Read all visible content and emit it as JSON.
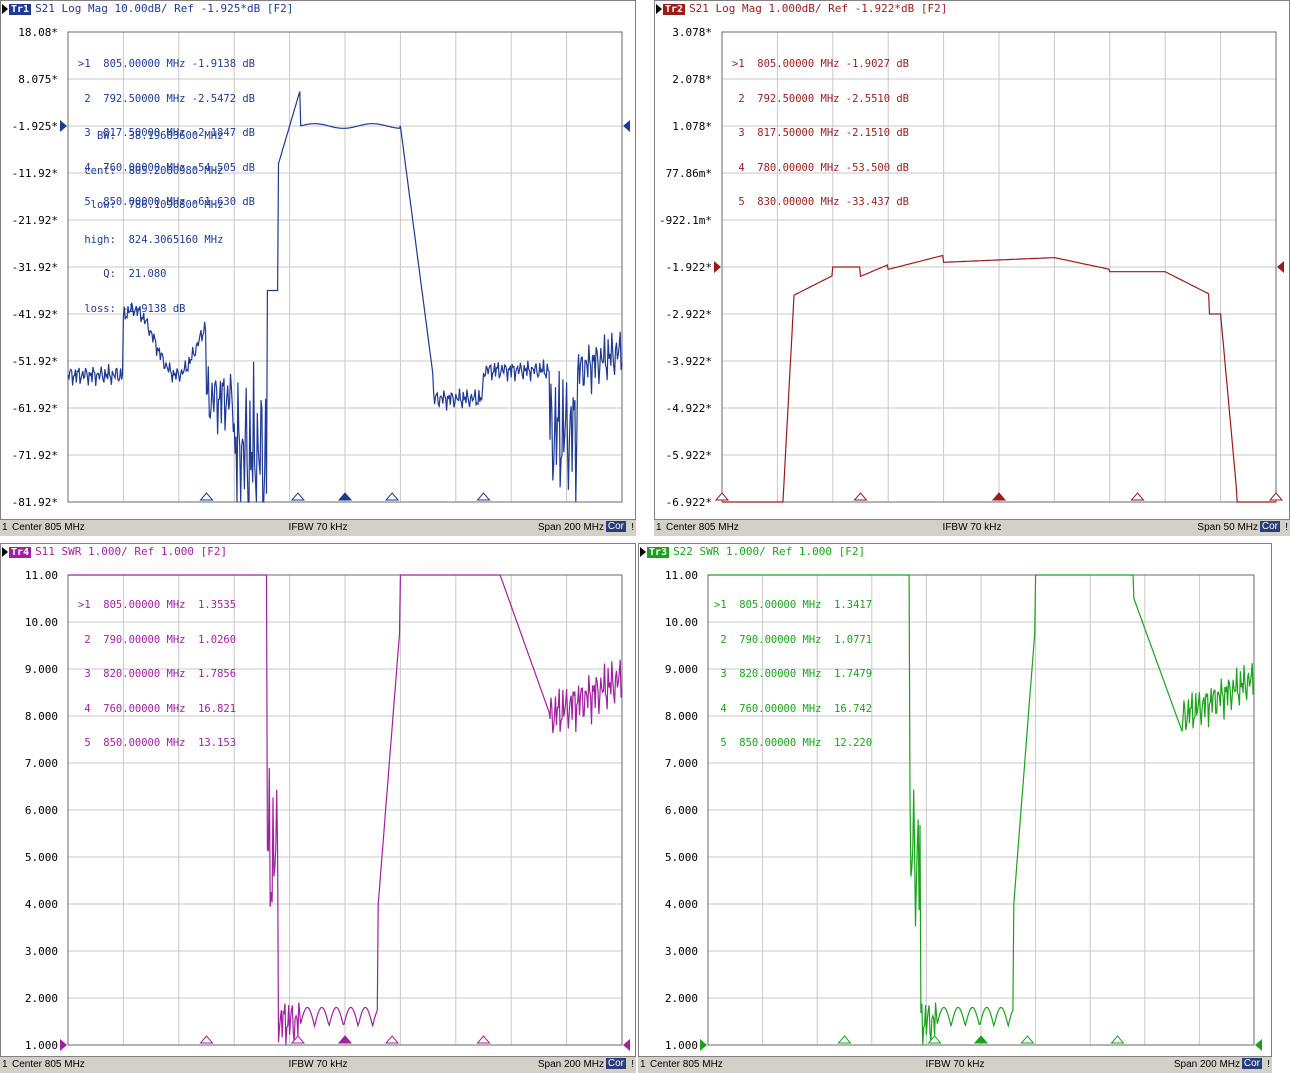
{
  "panes": [
    {
      "id": "tr1",
      "title": {
        "badge": "Tr1",
        "text": "S21  Log Mag 10.00dB/ Ref -1.925*dB  [F2]"
      },
      "color": "#1f3a93",
      "badge_bg": "#1f3a93",
      "y_labels": [
        "18.08*",
        "8.075*",
        "-1.925*",
        "-11.92*",
        "-21.92*",
        "-31.92*",
        "-41.92*",
        "-51.92*",
        "-61.92*",
        "-71.92*",
        "-81.92*"
      ],
      "ref_index": 2,
      "markers": [
        ">1  805.00000 MHz -1.9138 dB",
        " 2  792.50000 MHz -2.5472 dB",
        " 3  817.50000 MHz -2.1847 dB",
        " 4  760.00000 MHz -54.505 dB",
        " 5  850.00000 MHz -61.630 dB"
      ],
      "bw_stats": [
        "   BW:  38.19683600 MHz",
        " cent:  805.2080980 MHz",
        "  low:  786.1096800 MHz",
        " high:  824.3065160 MHz",
        "    Q:  21.080",
        " loss: -1.9138 dB"
      ],
      "status": {
        "channel": "1",
        "center": "Center 805 MHz",
        "ifbw": "IFBW 70 kHz",
        "span": "Span 200 MHz",
        "cor": "Cor",
        "excl": "!"
      }
    },
    {
      "id": "tr2",
      "title": {
        "badge": "Tr2",
        "text": "S21  Log Mag 1.000dB/ Ref -1.922*dB  [F2]"
      },
      "color": "#9b1b1b",
      "badge_bg": "#9b1b1b",
      "y_labels": [
        "3.078*",
        "2.078*",
        "1.078*",
        "77.86m*",
        "-922.1m*",
        "-1.922*",
        "-2.922*",
        "-3.922*",
        "-4.922*",
        "-5.922*",
        "-6.922*"
      ],
      "ref_index": 5,
      "markers": [
        ">1  805.00000 MHz -1.9027 dB",
        " 2  792.50000 MHz -2.5510 dB",
        " 3  817.50000 MHz -2.1510 dB",
        " 4  780.00000 MHz -53.500 dB",
        " 5  830.00000 MHz -33.437 dB"
      ],
      "bw_stats": [],
      "status": {
        "channel": "1",
        "center": "Center 805 MHz",
        "ifbw": "IFBW 70 kHz",
        "span": "Span 50 MHz",
        "cor": "Cor",
        "excl": "!"
      }
    },
    {
      "id": "tr4",
      "title": {
        "badge": "Tr4",
        "text": "S11  SWR 1.000/ Ref 1.000  [F2]"
      },
      "color": "#a020a0",
      "badge_bg": "#a020a0",
      "y_labels": [
        "11.00",
        "10.00",
        "9.000",
        "8.000",
        "7.000",
        "6.000",
        "5.000",
        "4.000",
        "3.000",
        "2.000",
        "1.000"
      ],
      "ref_index": 10,
      "markers": [
        ">1  805.00000 MHz  1.3535",
        " 2  790.00000 MHz  1.0260",
        " 3  820.00000 MHz  1.7856",
        " 4  760.00000 MHz  16.821",
        " 5  850.00000 MHz  13.153"
      ],
      "bw_stats": [],
      "status": {
        "channel": "1",
        "center": "Center 805 MHz",
        "ifbw": "IFBW 70 kHz",
        "span": "Span 200 MHz",
        "cor": "Cor",
        "excl": "!"
      }
    },
    {
      "id": "tr3",
      "title": {
        "badge": "Tr3",
        "text": "S22  SWR 1.000/ Ref 1.000  [F2]"
      },
      "color": "#1aa31a",
      "badge_bg": "#1aa31a",
      "y_labels": [
        "11.00",
        "10.00",
        "9.000",
        "8.000",
        "7.000",
        "6.000",
        "5.000",
        "4.000",
        "3.000",
        "2.000",
        "1.000"
      ],
      "ref_index": 10,
      "markers": [
        ">1  805.00000 MHz  1.3417",
        " 2  790.00000 MHz  1.0771",
        " 3  820.00000 MHz  1.7479",
        " 4  760.00000 MHz  16.742",
        " 5  850.00000 MHz  12.220"
      ],
      "bw_stats": [],
      "status": {
        "channel": "1",
        "center": "Center 805 MHz",
        "ifbw": "IFBW 70 kHz",
        "span": "Span 200 MHz",
        "cor": "Cor",
        "excl": "!"
      }
    }
  ]
}
